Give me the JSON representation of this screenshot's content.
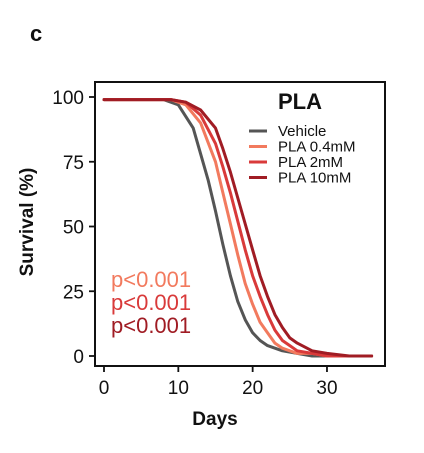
{
  "panel_label": "c",
  "chart_data": {
    "type": "line",
    "title": "PLA",
    "xlabel": "Days",
    "ylabel": "Survival (%)",
    "xlim": [
      0,
      37
    ],
    "ylim": [
      0,
      100
    ],
    "xticks": [
      0,
      10,
      20,
      30
    ],
    "yticks": [
      0,
      25,
      50,
      75,
      100
    ],
    "legend_position": "top-right",
    "grid": false,
    "series": [
      {
        "name": "Vehicle",
        "color": "#555555",
        "x": [
          0,
          8,
          10,
          12,
          14,
          15,
          16,
          17,
          18,
          19,
          20,
          21,
          22,
          24,
          26,
          28,
          30,
          33,
          36
        ],
        "y": [
          99,
          99,
          97,
          88,
          68,
          56,
          43,
          31,
          21,
          14,
          9,
          6,
          4,
          2,
          1,
          0,
          0,
          0,
          0
        ]
      },
      {
        "name": "PLA 0.4mM",
        "color": "#f27a5e",
        "x": [
          0,
          9,
          11,
          13,
          15,
          16,
          17,
          18,
          19,
          20,
          21,
          22,
          23,
          24,
          26,
          28,
          30,
          33,
          36
        ],
        "y": [
          99,
          99,
          97,
          90,
          75,
          63,
          51,
          39,
          28,
          20,
          13,
          9,
          5,
          3,
          1,
          1,
          0,
          0,
          0
        ]
      },
      {
        "name": "PLA 2mM",
        "color": "#d93a3a",
        "x": [
          0,
          9,
          11,
          13,
          15,
          16,
          17,
          18,
          19,
          20,
          21,
          22,
          23,
          24,
          25,
          26,
          28,
          30,
          33,
          36
        ],
        "y": [
          99,
          99,
          98,
          93,
          82,
          73,
          63,
          52,
          41,
          31,
          23,
          16,
          10,
          6,
          4,
          2,
          1,
          0,
          0,
          0
        ]
      },
      {
        "name": "PLA 10mM",
        "color": "#a01c24",
        "x": [
          0,
          9,
          11,
          13,
          15,
          16,
          17,
          18,
          19,
          20,
          21,
          22,
          23,
          24,
          25,
          26,
          28,
          30,
          33,
          36
        ],
        "y": [
          99,
          99,
          98,
          95,
          88,
          80,
          71,
          61,
          51,
          41,
          31,
          23,
          16,
          11,
          7,
          5,
          2,
          1,
          0,
          0
        ]
      }
    ],
    "annotations": [
      {
        "text": "p<0.001",
        "color": "#f27a5e"
      },
      {
        "text": "p<0.001",
        "color": "#d93a3a"
      },
      {
        "text": "p<0.001",
        "color": "#a01c24"
      }
    ]
  }
}
